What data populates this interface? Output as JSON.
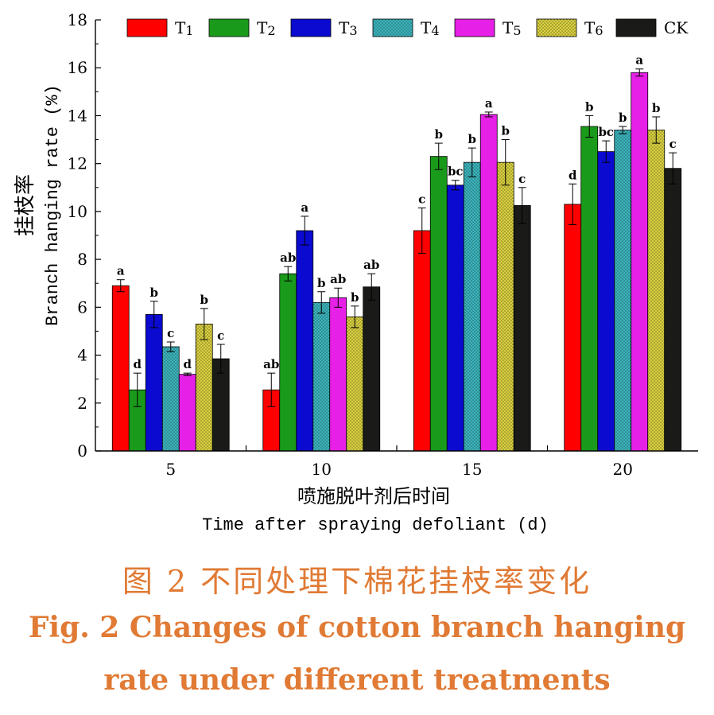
{
  "chart_data": {
    "type": "bar",
    "categories": [
      "5",
      "10",
      "15",
      "20"
    ],
    "ylabel_zh": "挂枝率",
    "ylabel": "Branch hanging rate (%)",
    "xlabel_zh": "喷施脱叶剂后时间",
    "xlabel": "Time after spraying defoliant (d)",
    "ylim": [
      0,
      18
    ],
    "yticks": [
      0,
      2,
      4,
      6,
      8,
      10,
      12,
      14,
      16,
      18
    ],
    "legend_position": "top",
    "series": [
      {
        "name": "T1",
        "base": "T",
        "sub": "1",
        "color": "#ff0000",
        "values": [
          6.9,
          2.55,
          9.2,
          10.3
        ],
        "errors": [
          0.25,
          0.7,
          0.95,
          0.85
        ],
        "letters": [
          "a",
          "ab",
          "c",
          "d"
        ]
      },
      {
        "name": "T2",
        "base": "T",
        "sub": "2",
        "color": "#1a9a1a",
        "values": [
          2.55,
          7.4,
          12.3,
          13.55
        ],
        "errors": [
          0.7,
          0.3,
          0.55,
          0.45
        ],
        "letters": [
          "d",
          "ab",
          "b",
          "b"
        ]
      },
      {
        "name": "T3",
        "base": "T",
        "sub": "3",
        "color": "#0a0ad0",
        "values": [
          5.7,
          9.2,
          11.1,
          12.5
        ],
        "errors": [
          0.55,
          0.6,
          0.2,
          0.45
        ],
        "letters": [
          "b",
          "a",
          "bc",
          "bc"
        ]
      },
      {
        "name": "T4",
        "base": "T",
        "sub": "4",
        "color": "#3cb4bc",
        "values": [
          4.35,
          6.2,
          12.05,
          13.4
        ],
        "errors": [
          0.2,
          0.45,
          0.6,
          0.15
        ],
        "letters": [
          "c",
          "b",
          "b",
          "b"
        ]
      },
      {
        "name": "T5",
        "base": "T",
        "sub": "5",
        "color": "#e620e6",
        "values": [
          3.2,
          6.4,
          14.05,
          15.8
        ],
        "errors": [
          0.05,
          0.4,
          0.1,
          0.15
        ],
        "letters": [
          "d",
          "ab",
          "a",
          "a"
        ]
      },
      {
        "name": "T6",
        "base": "T",
        "sub": "6",
        "color": "#d8d040",
        "values": [
          5.3,
          5.6,
          12.05,
          13.4
        ],
        "errors": [
          0.65,
          0.45,
          0.95,
          0.55
        ],
        "letters": [
          "b",
          "b",
          "b",
          "b"
        ]
      },
      {
        "name": "CK",
        "base": "CK",
        "sub": "",
        "color": "#1a1a18",
        "values": [
          3.85,
          6.85,
          10.25,
          11.8
        ],
        "errors": [
          0.6,
          0.55,
          0.75,
          0.65
        ],
        "letters": [
          "c",
          "ab",
          "c",
          "c"
        ]
      }
    ]
  },
  "caption": {
    "zh": "图 2   不同处理下棉花挂枝率变化",
    "en_line1": "Fig. 2    Changes of cotton branch hanging",
    "en_line2": "rate under different treatments"
  }
}
